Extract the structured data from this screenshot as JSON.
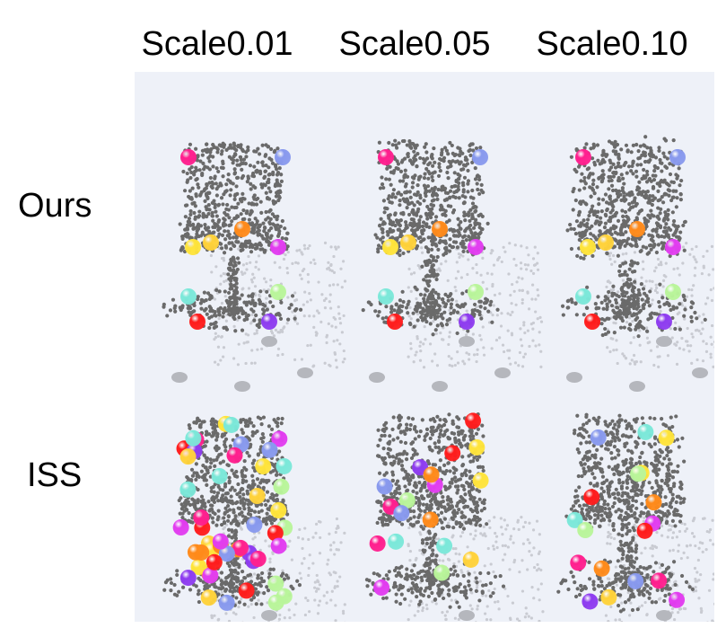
{
  "columns": [
    {
      "label": "Scale0.01"
    },
    {
      "label": "Scale0.05"
    },
    {
      "label": "Scale0.10"
    }
  ],
  "rows": [
    {
      "label": "Ours"
    },
    {
      "label": "ISS"
    }
  ],
  "colors": {
    "background": "#ffffff",
    "panel": "#eef1f8",
    "point": "#6a6a6a",
    "shadow": "#c9cbd2",
    "keypoint_palette": [
      "#ff1f8e",
      "#8899ee",
      "#ffe43a",
      "#e23cf0",
      "#ff8a1a",
      "#7be8d9",
      "#b9f59a",
      "#ff1c1c",
      "#8e3cf0",
      "#ffd23a"
    ]
  }
}
